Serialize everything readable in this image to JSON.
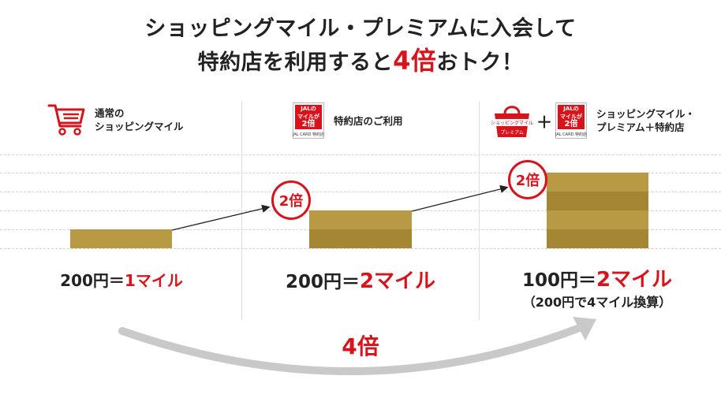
{
  "title": {
    "line1": "ショッピングマイル・プレミアムに入会して",
    "line2_prefix": "特約店を利用すると",
    "line2_highlight": "4倍",
    "line2_suffix": "おトク！"
  },
  "columns": [
    {
      "label_line1": "通常の",
      "label_line2": "ショッピングマイル",
      "icon": "shopping-cart-icon",
      "rate_prefix": "200円＝",
      "rate_highlight": "1マイル"
    },
    {
      "label_line1": "特約店のご利用",
      "icon": "jal-tokuyakuten-badge",
      "rate_prefix": "200円＝",
      "rate_highlight": "2マイル",
      "multiplier": "2倍"
    },
    {
      "label_line1": "ショッピングマイル・",
      "label_line2": "プレミアム＋特約店",
      "icon": "shopping-bag-icon",
      "plus": "＋",
      "rate_prefix": "100円＝",
      "rate_highlight": "2マイル",
      "rate_note": "（200円で4マイル換算）",
      "multiplier": "2倍"
    }
  ],
  "badge": {
    "line1": "JALの",
    "line2": "マイルが",
    "line3": "2倍",
    "footer": "JAL CARD 特約店"
  },
  "bag_badge": {
    "top": "ショッピングマイル",
    "bottom": "プレミアム"
  },
  "total_multiplier": "4倍",
  "colors": {
    "accent_red": "#d7141c",
    "bar_gold": "#b89a45",
    "bar_gold_dark": "#a58634",
    "arrow_gray": "#c9c9c9"
  }
}
